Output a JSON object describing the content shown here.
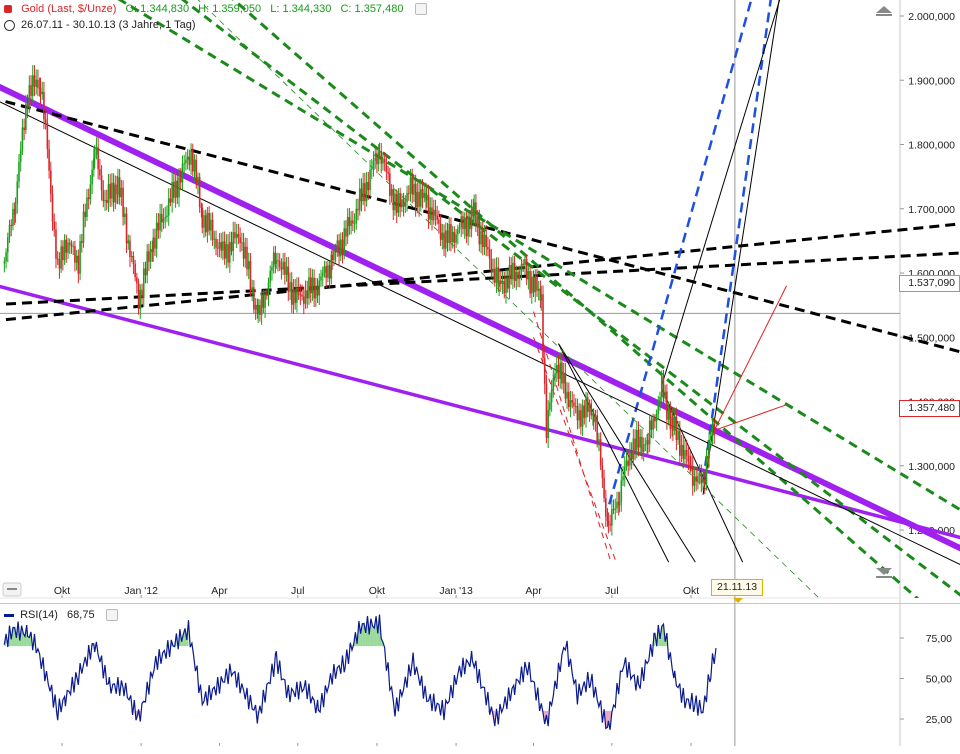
{
  "header": {
    "symbol": "Gold (Last, $/Unze)",
    "open": "O: 1.344,830",
    "high": "H: 1.359,050",
    "low": "L: 1.344,330",
    "close": "C: 1.357,480",
    "range": "26.07.11 - 30.10.13 (3 Jahre, 1 Tag)"
  },
  "price_tags": {
    "horizontal_line": "1.537,090",
    "last_price": "1.357,480"
  },
  "date_tag": "21.11.13",
  "colors": {
    "candle_up": "#1aa01a",
    "candle_down": "#d8262b",
    "channel": "#a020f0",
    "trend_black": "#000000",
    "trend_green": "#1a8a1a",
    "trend_blue": "#1f4fe0",
    "trend_red": "#e02020",
    "rsi_line": "#0a1a8c"
  },
  "chart_data": [
    {
      "type": "line",
      "title": "Gold (Last, $/Unze)",
      "ylim": [
        1150,
        2050
      ],
      "y_ticks": [
        "2.000,000",
        "1.900,000",
        "1.800,000",
        "1.700,000",
        "1.600,000",
        "1.500,000",
        "1.400,000",
        "1.300,000",
        "1.200,000"
      ],
      "y_tick_values": [
        2000,
        1900,
        1800,
        1700,
        1600,
        1500,
        1400,
        1300,
        1200
      ],
      "x_ticks": [
        "Okt",
        "Jan '12",
        "Apr",
        "Jul",
        "Okt",
        "Jan '13",
        "Apr",
        "Jul",
        "Okt"
      ],
      "x_tick_dates": [
        "2011-10-01",
        "2012-01-01",
        "2012-04-01",
        "2012-07-01",
        "2012-10-01",
        "2013-01-01",
        "2013-04-01",
        "2013-07-01",
        "2013-10-01"
      ],
      "xlim": [
        "2011-07-26",
        "2014-01-20"
      ],
      "series": [
        {
          "values": [
            {
              "x": "2011-07-26",
              "y": 1615
            },
            {
              "x": "2011-08-08",
              "y": 1720
            },
            {
              "x": "2011-08-22",
              "y": 1880
            },
            {
              "x": "2011-09-06",
              "y": 1900
            },
            {
              "x": "2011-09-14",
              "y": 1790
            },
            {
              "x": "2011-09-26",
              "y": 1600
            },
            {
              "x": "2011-10-04",
              "y": 1650
            },
            {
              "x": "2011-10-20",
              "y": 1620
            },
            {
              "x": "2011-11-08",
              "y": 1790
            },
            {
              "x": "2011-11-20",
              "y": 1710
            },
            {
              "x": "2011-12-05",
              "y": 1740
            },
            {
              "x": "2011-12-29",
              "y": 1560
            },
            {
              "x": "2012-01-15",
              "y": 1650
            },
            {
              "x": "2012-02-28",
              "y": 1790
            },
            {
              "x": "2012-03-12",
              "y": 1690
            },
            {
              "x": "2012-04-05",
              "y": 1630
            },
            {
              "x": "2012-04-25",
              "y": 1660
            },
            {
              "x": "2012-05-16",
              "y": 1530
            },
            {
              "x": "2012-06-06",
              "y": 1630
            },
            {
              "x": "2012-06-28",
              "y": 1560
            },
            {
              "x": "2012-07-24",
              "y": 1580
            },
            {
              "x": "2012-08-10",
              "y": 1620
            },
            {
              "x": "2012-09-05",
              "y": 1690
            },
            {
              "x": "2012-10-04",
              "y": 1790
            },
            {
              "x": "2012-10-24",
              "y": 1700
            },
            {
              "x": "2012-11-09",
              "y": 1730
            },
            {
              "x": "2012-11-28",
              "y": 1710
            },
            {
              "x": "2012-12-20",
              "y": 1650
            },
            {
              "x": "2013-01-22",
              "y": 1690
            },
            {
              "x": "2013-02-20",
              "y": 1580
            },
            {
              "x": "2013-03-20",
              "y": 1610
            },
            {
              "x": "2013-04-10",
              "y": 1560
            },
            {
              "x": "2013-04-16",
              "y": 1350
            },
            {
              "x": "2013-04-26",
              "y": 1460
            },
            {
              "x": "2013-05-20",
              "y": 1380
            },
            {
              "x": "2013-06-10",
              "y": 1390
            },
            {
              "x": "2013-06-27",
              "y": 1200
            },
            {
              "x": "2013-07-10",
              "y": 1260
            },
            {
              "x": "2013-07-24",
              "y": 1330
            },
            {
              "x": "2013-08-12",
              "y": 1340
            },
            {
              "x": "2013-08-28",
              "y": 1420
            },
            {
              "x": "2013-09-10",
              "y": 1360
            },
            {
              "x": "2013-09-20",
              "y": 1330
            },
            {
              "x": "2013-10-01",
              "y": 1290
            },
            {
              "x": "2013-10-15",
              "y": 1270
            },
            {
              "x": "2013-10-22",
              "y": 1340
            },
            {
              "x": "2013-10-30",
              "y": 1357.48
            }
          ]
        }
      ],
      "horizontal_line": 1537.09,
      "vertical_line_date": "2013-11-21"
    },
    {
      "type": "line",
      "title": "RSI(14)",
      "last_value": "68,75",
      "ylim": [
        10,
        95
      ],
      "y_ticks": [
        "75,00",
        "50,00",
        "25,00"
      ],
      "y_tick_values": [
        75,
        50,
        25
      ],
      "overbought": 70,
      "oversold": 30,
      "series": [
        {
          "name": "RSI(14)",
          "values": [
            {
              "x": "2011-07-26",
              "y": 72
            },
            {
              "x": "2011-08-05",
              "y": 80
            },
            {
              "x": "2011-08-22",
              "y": 78
            },
            {
              "x": "2011-09-01",
              "y": 70
            },
            {
              "x": "2011-09-26",
              "y": 30
            },
            {
              "x": "2011-10-05",
              "y": 38
            },
            {
              "x": "2011-10-20",
              "y": 52
            },
            {
              "x": "2011-11-08",
              "y": 72
            },
            {
              "x": "2011-11-25",
              "y": 45
            },
            {
              "x": "2011-12-12",
              "y": 45
            },
            {
              "x": "2011-12-29",
              "y": 25
            },
            {
              "x": "2012-01-18",
              "y": 60
            },
            {
              "x": "2012-02-05",
              "y": 70
            },
            {
              "x": "2012-02-25",
              "y": 80
            },
            {
              "x": "2012-03-12",
              "y": 36
            },
            {
              "x": "2012-03-30",
              "y": 45
            },
            {
              "x": "2012-04-15",
              "y": 55
            },
            {
              "x": "2012-05-16",
              "y": 27
            },
            {
              "x": "2012-06-06",
              "y": 62
            },
            {
              "x": "2012-06-20",
              "y": 40
            },
            {
              "x": "2012-07-10",
              "y": 45
            },
            {
              "x": "2012-07-25",
              "y": 30
            },
            {
              "x": "2012-08-10",
              "y": 52
            },
            {
              "x": "2012-08-25",
              "y": 60
            },
            {
              "x": "2012-09-12",
              "y": 82
            },
            {
              "x": "2012-10-04",
              "y": 84
            },
            {
              "x": "2012-10-22",
              "y": 30
            },
            {
              "x": "2012-11-12",
              "y": 60
            },
            {
              "x": "2012-11-28",
              "y": 38
            },
            {
              "x": "2012-12-18",
              "y": 30
            },
            {
              "x": "2013-01-05",
              "y": 55
            },
            {
              "x": "2013-01-20",
              "y": 62
            },
            {
              "x": "2013-02-15",
              "y": 24
            },
            {
              "x": "2013-03-10",
              "y": 45
            },
            {
              "x": "2013-03-25",
              "y": 58
            },
            {
              "x": "2013-04-16",
              "y": 22
            },
            {
              "x": "2013-05-08",
              "y": 72
            },
            {
              "x": "2013-05-22",
              "y": 40
            },
            {
              "x": "2013-06-06",
              "y": 50
            },
            {
              "x": "2013-06-27",
              "y": 18
            },
            {
              "x": "2013-07-15",
              "y": 60
            },
            {
              "x": "2013-08-01",
              "y": 45
            },
            {
              "x": "2013-08-20",
              "y": 74
            },
            {
              "x": "2013-08-30",
              "y": 82
            },
            {
              "x": "2013-09-12",
              "y": 50
            },
            {
              "x": "2013-09-24",
              "y": 36
            },
            {
              "x": "2013-10-05",
              "y": 35
            },
            {
              "x": "2013-10-15",
              "y": 30
            },
            {
              "x": "2013-10-24",
              "y": 55
            },
            {
              "x": "2013-10-30",
              "y": 68.75
            }
          ]
        }
      ]
    }
  ]
}
